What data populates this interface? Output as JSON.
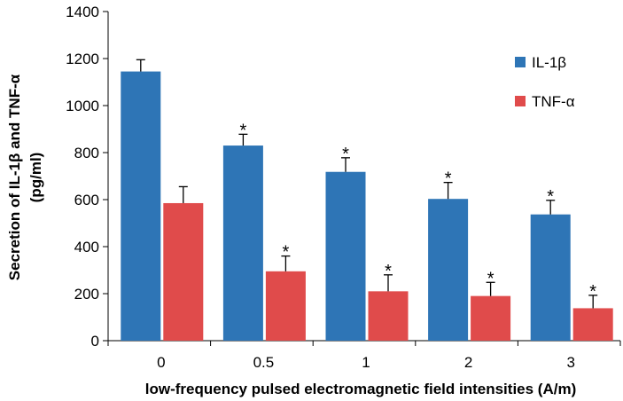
{
  "chart_data": {
    "type": "bar",
    "title": "",
    "xlabel": "low-frequency pulsed electromagnetic field intensities  (A/m)",
    "ylabel_line1": "Secretion of IL-1β and TNF-α",
    "ylabel_line2": "(pg/ml)",
    "categories": [
      "0",
      "0.5",
      "1",
      "2",
      "3"
    ],
    "ylim": [
      0,
      1400
    ],
    "yticks": [
      "0",
      "200",
      "400",
      "600",
      "800",
      "1000",
      "1200",
      "1400"
    ],
    "grid": false,
    "legend_position": "right",
    "significance_marker": "*",
    "series": [
      {
        "name": "IL-1β",
        "color": "#2e75b6",
        "values": [
          1145,
          830,
          718,
          603,
          537
        ],
        "errors": [
          50,
          48,
          60,
          70,
          60
        ],
        "significant": [
          false,
          true,
          true,
          true,
          true
        ]
      },
      {
        "name": "TNF-α",
        "color": "#e04b4b",
        "values": [
          585,
          295,
          210,
          190,
          138
        ],
        "errors": [
          70,
          65,
          70,
          58,
          55
        ],
        "significant": [
          false,
          true,
          true,
          true,
          true
        ]
      }
    ]
  }
}
